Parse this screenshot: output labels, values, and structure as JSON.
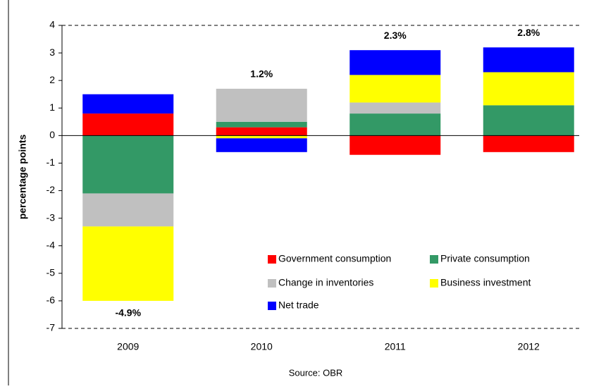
{
  "chart_data": {
    "type": "stacked-bar",
    "y_label": "percentage points",
    "source": "Source: OBR",
    "categories": [
      "2009",
      "2010",
      "2011",
      "2012"
    ],
    "series": [
      {
        "name": "Government consumption",
        "color": "#ff0000",
        "values": [
          0.8,
          0.3,
          -0.7,
          -0.6
        ]
      },
      {
        "name": "Private consumption",
        "color": "#339966",
        "values": [
          -2.1,
          0.2,
          0.8,
          1.1
        ]
      },
      {
        "name": "Change in inventories",
        "color": "#c0c0c0",
        "values": [
          -1.2,
          1.2,
          0.4,
          0
        ]
      },
      {
        "name": "Business investment",
        "color": "#ffff00",
        "values": [
          -2.7,
          -0.1,
          1.0,
          1.2
        ]
      },
      {
        "name": "Net trade",
        "color": "#0000ff",
        "values": [
          0.7,
          -0.5,
          0.9,
          0.9
        ]
      }
    ],
    "totals": {
      "values": [
        -4.9,
        1.2,
        2.3,
        2.8
      ],
      "value_labels": [
        "-4.9%",
        "1.2%",
        "2.3%",
        "2.8%"
      ]
    },
    "ylim": [
      -7,
      4
    ],
    "yticks": [
      -7,
      -6,
      -5,
      -4,
      -3,
      -2,
      -1,
      0,
      1,
      2,
      3,
      4
    ]
  }
}
